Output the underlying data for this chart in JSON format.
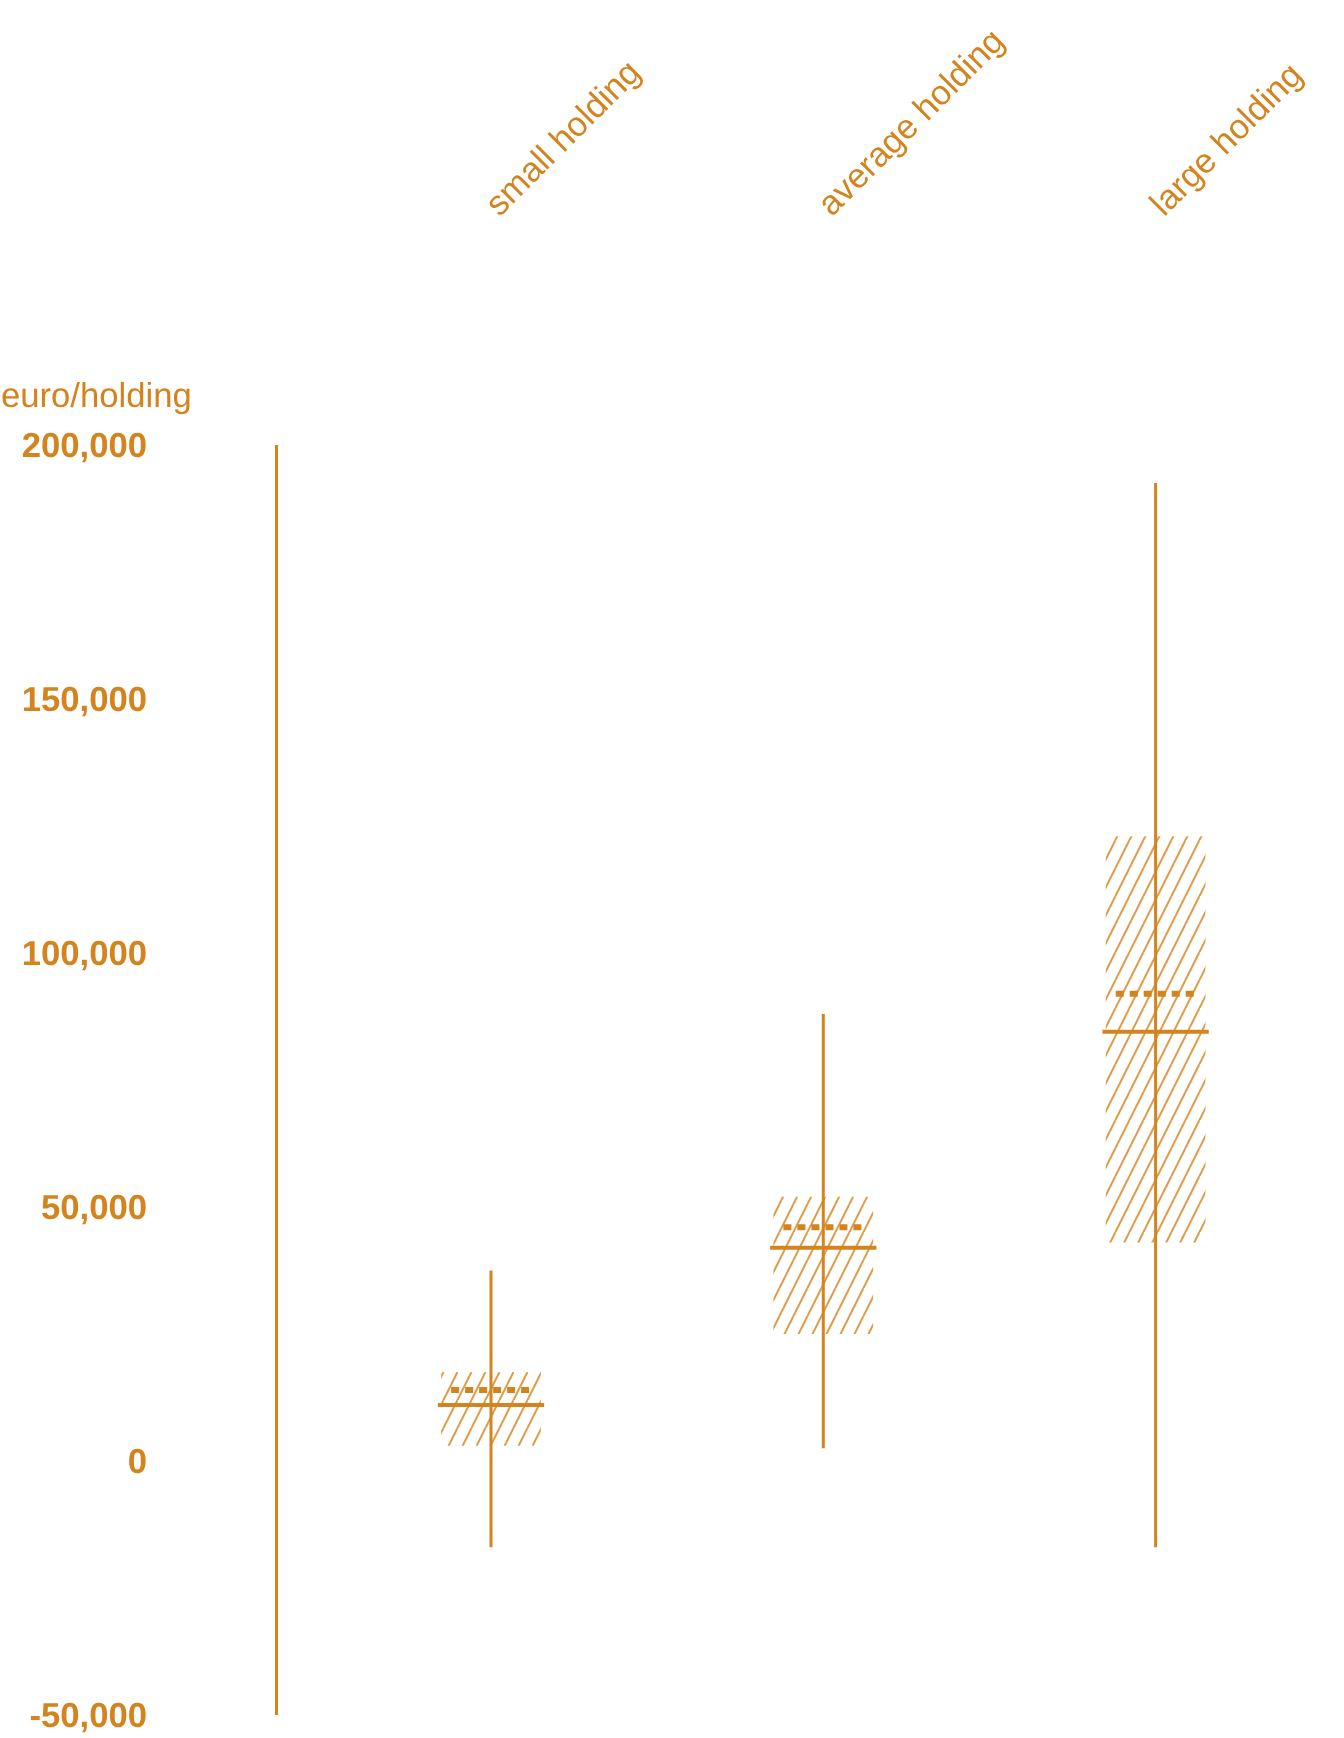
{
  "chart_data": {
    "type": "box",
    "ylabel": "euro/holding",
    "categories": [
      "small holding",
      "average holding",
      "large holding"
    ],
    "boxes": [
      {
        "low": -17000,
        "q1": 3000,
        "median": 11000,
        "q3": 17500,
        "high": 37500,
        "mean": 14000
      },
      {
        "low": 2500,
        "q1": 25000,
        "median": 42000,
        "q3": 52000,
        "high": 88000,
        "mean": 46000
      },
      {
        "low": -17000,
        "q1": 43000,
        "median": 84500,
        "q3": 123000,
        "high": 192500,
        "mean": 92000
      }
    ],
    "color": "#d4841e",
    "ylim": [
      -50000,
      200000
    ],
    "yticks": [
      {
        "value": -50000,
        "label": "-50,000"
      },
      {
        "value": 0,
        "label": "0"
      },
      {
        "value": 50000,
        "label": "50,000"
      },
      {
        "value": 100000,
        "label": "100,000"
      },
      {
        "value": 150000,
        "label": "150,000"
      },
      {
        "value": 200000,
        "label": "200,000"
      }
    ],
    "grid": false
  }
}
